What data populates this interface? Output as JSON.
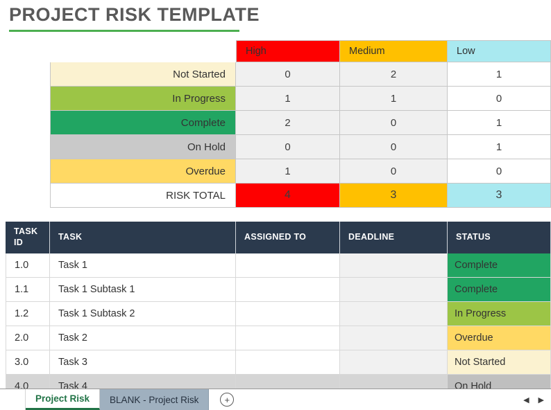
{
  "title": "PROJECT RISK TEMPLATE",
  "colors": {
    "title_text": "#595959",
    "title_underline": "#4caf50",
    "table_header_bg": "#2b3a4d",
    "active_tab_green": "#217346",
    "inactive_tab_bg": "#9fb0bf",
    "high": "#fe0000",
    "medium": "#ffc000",
    "low": "#a9e9f0"
  },
  "risk_matrix": {
    "columns": [
      {
        "label": "High",
        "color": "#fe0000"
      },
      {
        "label": "Medium",
        "color": "#ffc000"
      },
      {
        "label": "Low",
        "color": "#a9e9f0"
      }
    ],
    "rows": [
      {
        "label": "Not Started",
        "bg": "#fbf2d0",
        "values": [
          "0",
          "2",
          "1"
        ]
      },
      {
        "label": "In Progress",
        "bg": "#9cc546",
        "values": [
          "1",
          "1",
          "0"
        ]
      },
      {
        "label": "Complete",
        "bg": "#21a562",
        "values": [
          "2",
          "0",
          "1"
        ]
      },
      {
        "label": "On Hold",
        "bg": "#c9c9c9",
        "values": [
          "0",
          "0",
          "1"
        ]
      },
      {
        "label": "Overdue",
        "bg": "#ffd964",
        "values": [
          "1",
          "0",
          "0"
        ]
      }
    ],
    "total_row": {
      "label": "RISK TOTAL",
      "values": [
        "4",
        "3",
        "3"
      ]
    }
  },
  "task_table": {
    "headers": {
      "task_id": "TASK ID",
      "task": "TASK",
      "assigned_to": "ASSIGNED TO",
      "deadline": "DEADLINE",
      "status": "STATUS"
    },
    "rows": [
      {
        "id": "1.0",
        "task": "Task 1",
        "assigned_to": "",
        "deadline": "",
        "status": "Complete",
        "status_bg": "#21a562"
      },
      {
        "id": "1.1",
        "task": "Task 1 Subtask 1",
        "assigned_to": "",
        "deadline": "",
        "status": "Complete",
        "status_bg": "#21a562"
      },
      {
        "id": "1.2",
        "task": "Task 1 Subtask 2",
        "assigned_to": "",
        "deadline": "",
        "status": "In Progress",
        "status_bg": "#9cc546"
      },
      {
        "id": "2.0",
        "task": "Task 2",
        "assigned_to": "",
        "deadline": "",
        "status": "Overdue",
        "status_bg": "#ffd964"
      },
      {
        "id": "3.0",
        "task": "Task 3",
        "assigned_to": "",
        "deadline": "",
        "status": "Not Started",
        "status_bg": "#fbf2d0"
      },
      {
        "id": "4.0",
        "task": "Task 4",
        "assigned_to": "",
        "deadline": "",
        "status": "On Hold",
        "status_bg": "#bfbfbf"
      }
    ]
  },
  "sheet_tabs": {
    "active": "Project Risk",
    "inactive": "BLANK - Project Risk",
    "add_label": "+"
  },
  "scrollbar": {
    "left_arrow": "◀",
    "right_arrow": "▶"
  }
}
